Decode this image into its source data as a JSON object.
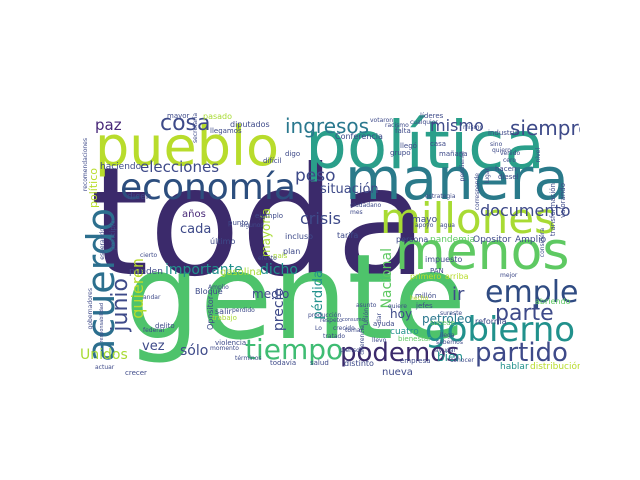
{
  "figure": {
    "title": "",
    "words": [
      {
        "text": "toda",
        "color": "#3b2a6b"
      },
      {
        "text": "gente",
        "color": "#4ec36b"
      },
      {
        "text": "política",
        "color": "#2a9f8a"
      },
      {
        "text": "pueblo",
        "color": "#b8dc2c"
      },
      {
        "text": "manera",
        "color": "#2a7a8a"
      },
      {
        "text": "menos",
        "color": "#5ec962"
      },
      {
        "text": "economía",
        "color": "#2c4e7e"
      },
      {
        "text": "millones",
        "color": "#a8db34"
      },
      {
        "text": "acuerdo",
        "color": "#2c6f8e"
      },
      {
        "text": "empleo",
        "color": "#2f4b82"
      },
      {
        "text": "gobierno",
        "color": "#21918c"
      },
      {
        "text": "tiempo",
        "color": "#3fbc73"
      },
      {
        "text": "podemos",
        "color": "#3b2a6b"
      },
      {
        "text": "partido",
        "color": "#3e4a89"
      },
      {
        "text": "parte",
        "color": "#3e4a89"
      },
      {
        "text": "junio",
        "color": "#3e4a89"
      },
      {
        "text": "cosa",
        "color": "#3e4a89"
      },
      {
        "text": "ingresos",
        "color": "#2a788e"
      },
      {
        "text": "siempre",
        "color": "#3e4a89"
      },
      {
        "text": "mismo",
        "color": "#3e4a89"
      },
      {
        "text": "paz",
        "color": "#482878"
      },
      {
        "text": "elecciones",
        "color": "#3e4a89"
      },
      {
        "text": "peso",
        "color": "#3e4a89"
      },
      {
        "text": "situación",
        "color": "#3e4a89"
      },
      {
        "text": "documento",
        "color": "#3e4a89"
      },
      {
        "text": "crisis",
        "color": "#3e4a89"
      },
      {
        "text": "quieren",
        "color": "#b8dc2c"
      },
      {
        "text": "importante",
        "color": "#21918c"
      },
      {
        "text": "dicho",
        "color": "#21918c"
      },
      {
        "text": "mayoría",
        "color": "#a8db34"
      },
      {
        "text": "cada",
        "color": "#3e4a89"
      },
      {
        "text": "años",
        "color": "#482878"
      },
      {
        "text": "Nacional",
        "color": "#5ec962"
      },
      {
        "text": "pérdida",
        "color": "#21918c"
      },
      {
        "text": "medio",
        "color": "#3e4a89"
      },
      {
        "text": "precio",
        "color": "#3e4a89"
      },
      {
        "text": "hoy",
        "color": "#3e4a89"
      },
      {
        "text": "ir",
        "color": "#3e4a89"
      },
      {
        "text": "petróleo",
        "color": "#2a788e"
      },
      {
        "text": "bien",
        "color": "#21918c"
      },
      {
        "text": "vez",
        "color": "#3e4a89"
      },
      {
        "text": "sólo",
        "color": "#3e4a89"
      },
      {
        "text": "Unidos",
        "color": "#a8db34"
      },
      {
        "text": "político",
        "color": "#b8dc2c"
      },
      {
        "text": "nueva",
        "color": "#3e4a89"
      },
      {
        "text": "cuatro",
        "color": "#21918c"
      },
      {
        "text": "mayo",
        "color": "#3e4a89"
      },
      {
        "text": "pandemia",
        "color": "#5ec962"
      },
      {
        "text": "Opositor",
        "color": "#3e4a89"
      },
      {
        "text": "Amplio",
        "color": "#3e4a89"
      },
      {
        "text": "persona",
        "color": "#3e4a89"
      },
      {
        "text": "hablar",
        "color": "#21918c"
      },
      {
        "text": "distribución",
        "color": "#b8dc2c"
      },
      {
        "text": "gasolina",
        "color": "#a8db34"
      },
      {
        "text": "dicen",
        "color": "#3e4a89"
      },
      {
        "text": "pueden",
        "color": "#3e4a89"
      },
      {
        "text": "salir",
        "color": "#3e4a89"
      },
      {
        "text": "haciendo",
        "color": "#3e4a89"
      },
      {
        "text": "Conferencia",
        "color": "#3e4a89"
      },
      {
        "text": "líderes",
        "color": "#3e4a89"
      },
      {
        "text": "grupo",
        "color": "#3e4a89"
      },
      {
        "text": "llegó",
        "color": "#3e4a89"
      },
      {
        "text": "casa",
        "color": "#3e4a89"
      },
      {
        "text": "mañana",
        "color": "#3e4a89"
      },
      {
        "text": "industria",
        "color": "#3e4a89"
      },
      {
        "text": "diputados",
        "color": "#3e4a89"
      },
      {
        "text": "pasado",
        "color": "#a8db34"
      },
      {
        "text": "mayor",
        "color": "#3e4a89"
      },
      {
        "text": "digo",
        "color": "#3e4a89"
      },
      {
        "text": "incluso",
        "color": "#3e4a89"
      },
      {
        "text": "plan",
        "color": "#3e4a89"
      },
      {
        "text": "último",
        "color": "#3e4a89"
      },
      {
        "text": "punto",
        "color": "#3e4a89"
      },
      {
        "text": "ejemplo",
        "color": "#3e4a89"
      },
      {
        "text": "tarifa",
        "color": "#3e4a89"
      },
      {
        "text": "PAN",
        "color": "#3e4a89"
      },
      {
        "text": "impuesto",
        "color": "#3e4a89"
      },
      {
        "text": "millón",
        "color": "#3e4a89"
      },
      {
        "text": "jefes",
        "color": "#3e4a89"
      },
      {
        "text": "reforma",
        "color": "#3e4a89"
      },
      {
        "text": "ayuda",
        "color": "#3e4a89"
      },
      {
        "text": "sucede",
        "color": "#5ec962"
      },
      {
        "text": "bienestar",
        "color": "#5ec962"
      },
      {
        "text": "empresa",
        "color": "#3e4a89"
      },
      {
        "text": "distinto",
        "color": "#3e4a89"
      },
      {
        "text": "salud",
        "color": "#3e4a89"
      },
      {
        "text": "todavía",
        "color": "#3e4a89"
      },
      {
        "text": "términos",
        "color": "#3e4a89"
      },
      {
        "text": "violencia",
        "color": "#3e4a89"
      },
      {
        "text": "momento",
        "color": "#3e4a89"
      },
      {
        "text": "Bloque",
        "color": "#3e4a89"
      },
      {
        "text": "Opositor",
        "color": "#3e4a89"
      },
      {
        "text": "delito",
        "color": "#3e4a89"
      },
      {
        "text": "andar",
        "color": "#3e4a89"
      },
      {
        "text": "crecer",
        "color": "#3e4a89"
      },
      {
        "text": "federal",
        "color": "#3e4a89"
      },
      {
        "text": "actuar",
        "color": "#3e4a89"
      },
      {
        "text": "trabajo",
        "color": "#a8db34"
      },
      {
        "text": "perdido",
        "color": "#3e4a89"
      },
      {
        "text": "país",
        "color": "#a8db34"
      },
      {
        "text": "llevo",
        "color": "#3e4a89"
      },
      {
        "text": "conocer",
        "color": "#3e4a89"
      },
      {
        "text": "mejor",
        "color": "#3e4a89"
      },
      {
        "text": "abriendo",
        "color": "#5ec962"
      },
      {
        "text": "primero",
        "color": "#b8dc2c"
      },
      {
        "text": "arriba",
        "color": "#b8dc2c"
      },
      {
        "text": "hecho",
        "color": "#b8dc2c"
      },
      {
        "text": "asunto",
        "color": "#3e4a89"
      },
      {
        "text": "producción",
        "color": "#3e4a89"
      },
      {
        "text": "consumo",
        "color": "#3e4a89"
      },
      {
        "text": "ciudadano",
        "color": "#3e4a89"
      },
      {
        "text": "venido",
        "color": "#3e4a89"
      },
      {
        "text": "cero",
        "color": "#3e4a89"
      },
      {
        "text": "hacen",
        "color": "#3e4a89"
      },
      {
        "text": "diesel",
        "color": "#3e4a89"
      },
      {
        "text": "sino",
        "color": "#3e4a89"
      },
      {
        "text": "quiero",
        "color": "#3e4a89"
      },
      {
        "text": "nivel",
        "color": "#3e4a89"
      },
      {
        "text": "falta",
        "color": "#3e4a89"
      },
      {
        "text": "estrategia",
        "color": "#3e4a89"
      },
      {
        "text": "tomar",
        "color": "#3e4a89"
      },
      {
        "text": "pienso",
        "color": "#3e4a89"
      },
      {
        "text": "cualquier",
        "color": "#3e4a89"
      },
      {
        "text": "gobernadores",
        "color": "#3e4a89"
      },
      {
        "text": "principio",
        "color": "#3e4a89"
      },
      {
        "text": "esperando",
        "color": "#3e4a89"
      },
      {
        "text": "Amplio",
        "color": "#3e4a89"
      },
      {
        "text": "dar",
        "color": "#3e4a89"
      },
      {
        "text": "sureste",
        "color": "#3e4a89"
      },
      {
        "text": "transformación",
        "color": "#3e4a89"
      },
      {
        "text": "valorando",
        "color": "#3e4a89"
      },
      {
        "text": "considera",
        "color": "#3e4a89"
      },
      {
        "text": "recomendaciones",
        "color": "#3e4a89"
      },
      {
        "text": "secretaría",
        "color": "#3e4a89"
      },
      {
        "text": "llegamos",
        "color": "#3e4a89"
      },
      {
        "text": "difícil",
        "color": "#3e4a89"
      },
      {
        "text": "lugar",
        "color": "#3e4a89"
      },
      {
        "text": "corresponde",
        "color": "#3e4a89"
      },
      {
        "text": "votaron",
        "color": "#3e4a89"
      },
      {
        "text": "racismo",
        "color": "#3e4a89"
      },
      {
        "text": "mismo",
        "color": "#3e4a89"
      },
      {
        "text": "algunos",
        "color": "#3e4a89"
      },
      {
        "text": "apoyo",
        "color": "#3e4a89"
      },
      {
        "text": "agua",
        "color": "#3e4a89"
      },
      {
        "text": "mes",
        "color": "#3e4a89"
      },
      {
        "text": "efecto",
        "color": "#3e4a89"
      },
      {
        "text": "cierto",
        "color": "#3e4a89"
      },
      {
        "text": "crecido",
        "color": "#3e4a89"
      },
      {
        "text": "Unión",
        "color": "#3e4a89"
      },
      {
        "text": "respeto",
        "color": "#3e4a89"
      },
      {
        "text": "tratado",
        "color": "#3e4a89"
      },
      {
        "text": "diferencia",
        "color": "#3e4a89"
      },
      {
        "text": "sabemos",
        "color": "#3e4a89"
      },
      {
        "text": "ayudar",
        "color": "#3e4a89"
      },
      {
        "text": "quiere",
        "color": "#3e4a89"
      },
      {
        "text": "llega",
        "color": "#3e4a89"
      },
      {
        "text": "Lo",
        "color": "#3e4a89"
      },
      {
        "text": "responsabilidad",
        "color": "#3e4a89"
      },
      {
        "text": "pendiente",
        "color": "#3e4a89"
      }
    ]
  }
}
